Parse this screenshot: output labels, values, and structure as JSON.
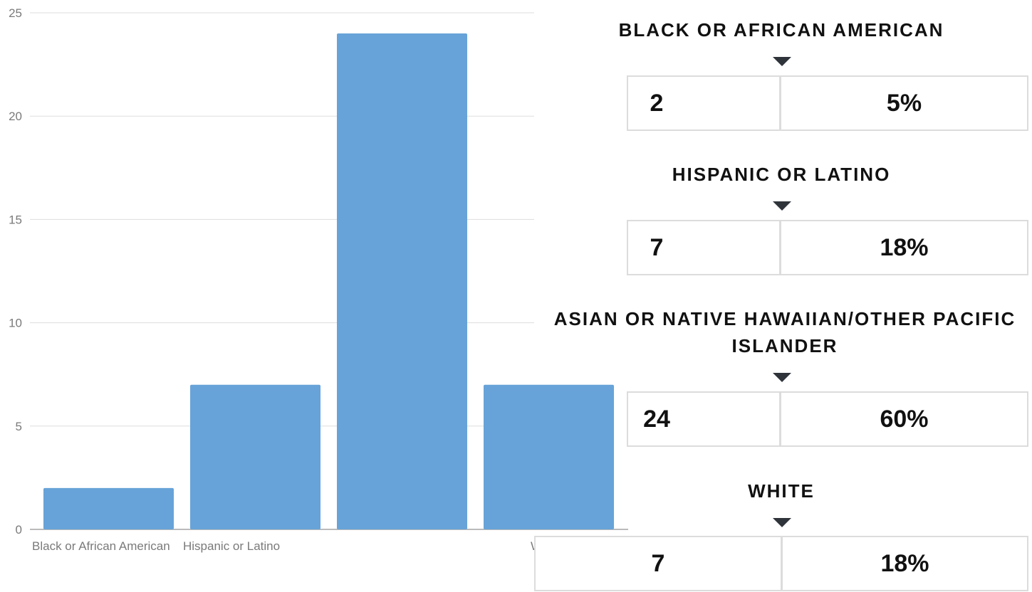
{
  "chart_data": {
    "type": "bar",
    "categories": [
      "Black or African American",
      "Hispanic or Latino",
      "Asian or Native Hawaiian/Other Pacific Islander",
      "White"
    ],
    "category_labels_shown": [
      "Black or African American",
      "Hispanic or Latino",
      "",
      "White"
    ],
    "values": [
      2,
      7,
      24,
      7
    ],
    "ylim": [
      0,
      25
    ],
    "yticks": [
      "0",
      "5",
      "10",
      "15",
      "20",
      "25"
    ],
    "title": "",
    "xlabel": "",
    "ylabel": "",
    "grid": true,
    "bar_color": "#67a3d8"
  },
  "stats": [
    {
      "label": "BLACK OR AFRICAN AMERICAN",
      "count": "2",
      "percent": "5%"
    },
    {
      "label": "HISPANIC OR LATINO",
      "count": "7",
      "percent": "18%"
    },
    {
      "label": "ASIAN OR NATIVE HAWAIIAN/OTHER PACIFIC ISLANDER",
      "count": "24",
      "percent": "60%"
    },
    {
      "label": "WHITE",
      "count": "7",
      "percent": "18%"
    }
  ],
  "colors": {
    "grid": "#dddddd",
    "axis": "#bbbbbb",
    "caret": "#2f333a",
    "cell_border": "#dcdcdc",
    "text": "#111111"
  }
}
